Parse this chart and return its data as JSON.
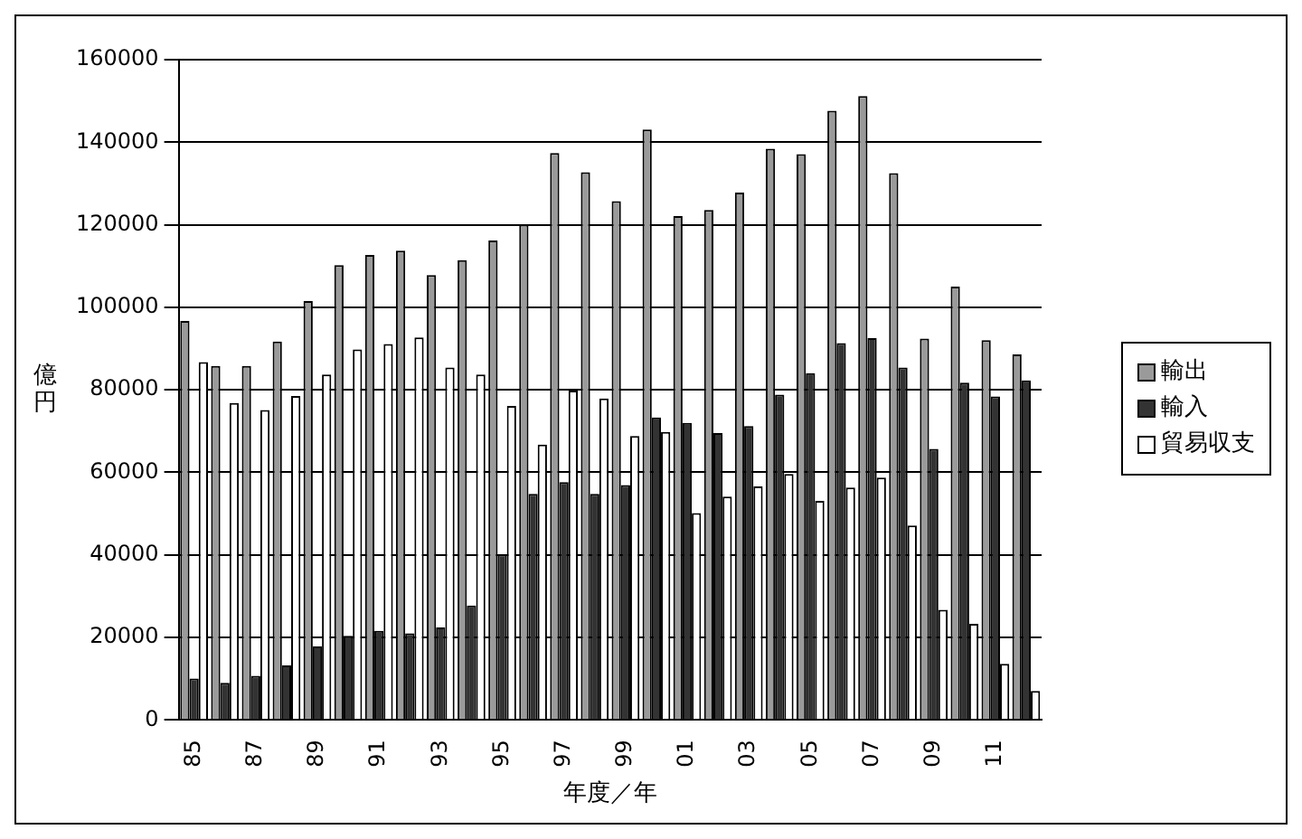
{
  "chart_data": {
    "type": "bar",
    "xlabel": "年度／年",
    "ylabel": "億円",
    "categories": [
      "85",
      null,
      "87",
      null,
      "89",
      null,
      "91",
      null,
      "93",
      null,
      "95",
      null,
      "97",
      null,
      "99",
      null,
      "01",
      null,
      "03",
      null,
      "05",
      null,
      "07",
      null,
      "09",
      null,
      "11",
      null
    ],
    "series": [
      {
        "name": "輸出",
        "color": "#9a9a9a",
        "values": [
          96700,
          85800,
          85800,
          91700,
          101500,
          110200,
          112700,
          113700,
          107800,
          111400,
          116200,
          120000,
          137400,
          132700,
          125700,
          143100,
          122100,
          123600,
          127800,
          138400,
          137100,
          147600,
          151200,
          132500,
          92400,
          105000,
          92000,
          88600
        ]
      },
      {
        "name": "輸入",
        "color": "#333333",
        "values": [
          10000,
          9000,
          10700,
          13200,
          17800,
          20400,
          21600,
          21000,
          22400,
          27700,
          40100,
          54800,
          57600,
          54800,
          56900,
          73300,
          72000,
          69500,
          71200,
          78800,
          84000,
          91300,
          92500,
          85400,
          65700,
          81700,
          78400,
          82300
        ]
      },
      {
        "name": "貿易収支",
        "color": "#ffffff",
        "values": [
          86700,
          76800,
          75100,
          78500,
          83700,
          89800,
          91100,
          92700,
          85400,
          83700,
          76100,
          66700,
          79800,
          77900,
          68800,
          69800,
          50100,
          54100,
          56600,
          59600,
          53100,
          56300,
          58700,
          47100,
          26700,
          23300,
          13600,
          7000
        ]
      }
    ],
    "ylim": [
      0,
      160000
    ],
    "yticks": [
      0,
      20000,
      40000,
      60000,
      80000,
      100000,
      120000,
      140000,
      160000
    ],
    "grid": "y",
    "legend": "right"
  }
}
